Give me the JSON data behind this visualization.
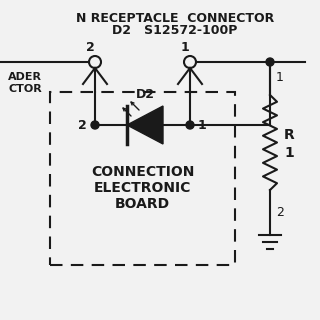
{
  "bg_color": "#f2f2f2",
  "line_color": "#1a1a1a",
  "title_line1": "N RECEPTACLE  CONNECTOR",
  "title_line2": "D2   S12572-100P",
  "box_label_line1": "CONNECTION",
  "box_label_line2": "ELECTRONIC",
  "box_label_line3": "BOARD",
  "diode_label": "D2",
  "resistor_label": "R",
  "resistor_num": "1",
  "pin1_label": "1",
  "pin2_label": "2",
  "node1_label": "1",
  "node2_label": "2",
  "label_1_right": "1",
  "label_2_right": "2",
  "ader_line1": "ADER",
  "ader_line2": "CTOR"
}
